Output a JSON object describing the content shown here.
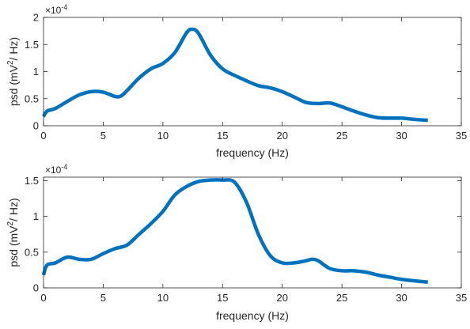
{
  "chart_data": [
    {
      "type": "line",
      "title": "",
      "xlabel": "frequency (Hz)",
      "ylabel_main": "psd (mV",
      "ylabel_sup": "2",
      "ylabel_tail": "/ Hz)",
      "xlim": [
        0,
        35
      ],
      "ylim": [
        0,
        2
      ],
      "xticks": [
        0,
        5,
        10,
        15,
        20,
        25,
        30,
        35
      ],
      "xtick_labels": [
        "0",
        "5",
        "10",
        "15",
        "20",
        "25",
        "30",
        "35"
      ],
      "yticks": [
        0,
        0.5,
        1,
        1.5,
        2
      ],
      "ytick_labels": [
        "0",
        "0.5",
        "1",
        "1.5",
        "2"
      ],
      "exponent_base": "×10",
      "exponent_power": "-4",
      "color": "#0072BD",
      "grid": false,
      "series": [
        {
          "x": [
            0,
            0.3,
            1,
            2,
            3,
            4,
            5,
            6,
            6.5,
            7,
            8,
            9,
            10,
            11,
            12,
            12.5,
            13,
            14,
            15,
            16,
            17,
            18,
            19,
            20,
            21,
            22,
            23,
            24,
            25,
            26,
            27,
            28,
            29,
            30,
            31,
            32.2
          ],
          "y": [
            0.17,
            0.27,
            0.32,
            0.45,
            0.57,
            0.63,
            0.62,
            0.54,
            0.55,
            0.65,
            0.88,
            1.05,
            1.15,
            1.35,
            1.72,
            1.78,
            1.7,
            1.3,
            1.05,
            0.93,
            0.83,
            0.74,
            0.7,
            0.63,
            0.53,
            0.43,
            0.41,
            0.42,
            0.35,
            0.27,
            0.2,
            0.15,
            0.14,
            0.14,
            0.12,
            0.1
          ]
        }
      ]
    },
    {
      "type": "line",
      "title": "",
      "xlabel": "frequency (Hz)",
      "ylabel_main": "psd (mV",
      "ylabel_sup": "2",
      "ylabel_tail": "/ Hz)",
      "xlim": [
        0,
        35
      ],
      "ylim": [
        0,
        1.55
      ],
      "xticks": [
        0,
        5,
        10,
        15,
        20,
        25,
        30,
        35
      ],
      "xtick_labels": [
        "0",
        "5",
        "10",
        "15",
        "20",
        "25",
        "30",
        "35"
      ],
      "yticks": [
        0,
        0.5,
        1,
        1.5
      ],
      "ytick_labels": [
        "0",
        "0.5",
        "1",
        "1.5"
      ],
      "exponent_base": "×10",
      "exponent_power": "-4",
      "color": "#0072BD",
      "grid": false,
      "series": [
        {
          "x": [
            0,
            0.3,
            1,
            2,
            3,
            4,
            5,
            6,
            7,
            8,
            9,
            10,
            11,
            12,
            13,
            14,
            15,
            16,
            17,
            18,
            19,
            20,
            21,
            22,
            22.5,
            23,
            24,
            25,
            26,
            27,
            28,
            29,
            30,
            31,
            32.2
          ],
          "y": [
            0.18,
            0.32,
            0.35,
            0.43,
            0.4,
            0.4,
            0.48,
            0.55,
            0.6,
            0.75,
            0.9,
            1.07,
            1.3,
            1.42,
            1.49,
            1.51,
            1.51,
            1.48,
            1.2,
            0.75,
            0.45,
            0.35,
            0.35,
            0.38,
            0.4,
            0.38,
            0.27,
            0.24,
            0.24,
            0.22,
            0.18,
            0.15,
            0.12,
            0.1,
            0.08
          ]
        }
      ]
    }
  ]
}
